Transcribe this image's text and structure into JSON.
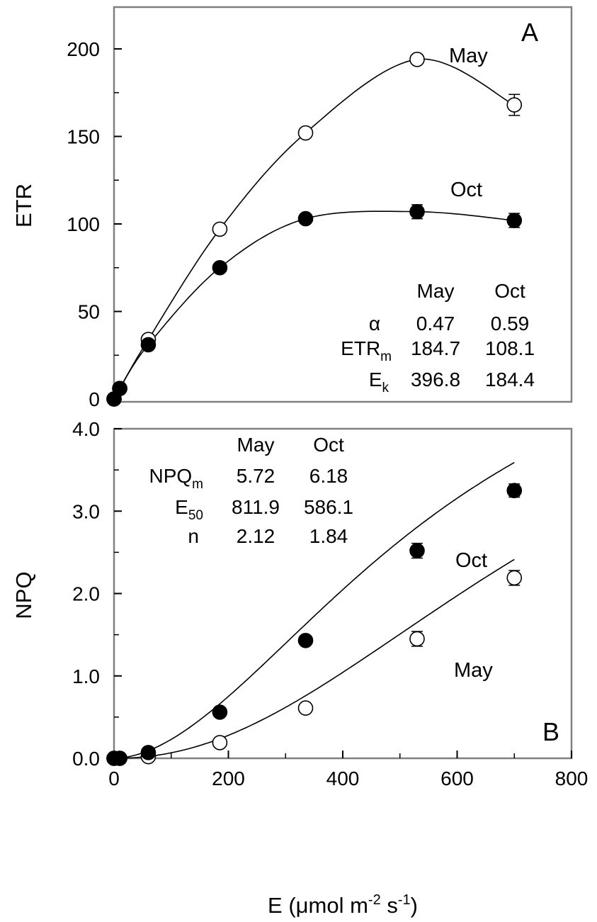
{
  "chart_data": [
    {
      "panel_label": "A",
      "type": "scatter",
      "ylabel": "ETR",
      "xlim": [
        0,
        800
      ],
      "ylim": [
        0,
        220
      ],
      "yticks": [
        0,
        50,
        100,
        150,
        200
      ],
      "ytick_labels": [
        "0",
        "50",
        "100",
        "150",
        "200"
      ],
      "grid": false,
      "series": [
        {
          "name": "May",
          "marker": "open-circle",
          "x": [
            0,
            10,
            60,
            185,
            335,
            530,
            700
          ],
          "y": [
            0,
            6,
            34,
            97,
            152,
            194,
            168
          ],
          "err": [
            0,
            0,
            0,
            0,
            0,
            0,
            6
          ],
          "fit": {
            "model": "Platt",
            "alpha": 0.47,
            "ETRm": 184.7
          }
        },
        {
          "name": "Oct",
          "marker": "filled-circle",
          "x": [
            0,
            10,
            60,
            185,
            335,
            530,
            700
          ],
          "y": [
            0,
            6,
            31,
            75,
            103,
            107,
            102
          ],
          "err": [
            0,
            0,
            0,
            0,
            0,
            4,
            4
          ],
          "fit": {
            "model": "Platt",
            "alpha": 0.59,
            "ETRm": 108.1
          }
        }
      ],
      "parameter_table": {
        "columns": [
          "May",
          "Oct"
        ],
        "rows": [
          {
            "base": "α",
            "sub": "",
            "values": [
              "0.47",
              "0.59"
            ]
          },
          {
            "base": "ETR",
            "sub": "m",
            "values": [
              "184.7",
              "108.1"
            ]
          },
          {
            "base": "E",
            "sub": "k",
            "values": [
              "396.8",
              "184.4"
            ]
          }
        ]
      }
    },
    {
      "panel_label": "B",
      "type": "scatter",
      "ylabel": "NPQ",
      "xlabel": "E (μmol m⁻² s⁻¹)",
      "xlim": [
        0,
        800
      ],
      "xticks": [
        0,
        200,
        400,
        600,
        800
      ],
      "xtick_labels": [
        "0",
        "200",
        "400",
        "600",
        "800"
      ],
      "ylim": [
        0,
        4
      ],
      "yticks": [
        0,
        1,
        2,
        3,
        4
      ],
      "ytick_labels": [
        "0.0",
        "1.0",
        "2.0",
        "3.0",
        "4.0"
      ],
      "grid": false,
      "series": [
        {
          "name": "May",
          "marker": "open-circle",
          "x": [
            0,
            10,
            60,
            185,
            335,
            530,
            700
          ],
          "y": [
            0,
            0,
            0.02,
            0.19,
            0.61,
            1.45,
            2.19
          ],
          "err": [
            0,
            0,
            0,
            0,
            0,
            0.09,
            0.09
          ],
          "fit": {
            "model": "Hill",
            "NPQm": 5.72,
            "E50": 811.9,
            "n": 2.12
          }
        },
        {
          "name": "Oct",
          "marker": "filled-circle",
          "x": [
            0,
            10,
            60,
            185,
            335,
            530,
            700
          ],
          "y": [
            0,
            0,
            0.07,
            0.56,
            1.43,
            2.52,
            3.25
          ],
          "err": [
            0,
            0,
            0,
            0,
            0,
            0.09,
            0.08
          ],
          "fit": {
            "model": "Hill",
            "NPQm": 6.18,
            "E50": 586.1,
            "n": 1.84
          }
        }
      ],
      "parameter_table": {
        "columns": [
          "May",
          "Oct"
        ],
        "rows": [
          {
            "base": "NPQ",
            "sub": "m",
            "values": [
              "5.72",
              "6.18"
            ]
          },
          {
            "base": "E",
            "sub": "50",
            "values": [
              "811.9",
              "586.1"
            ]
          },
          {
            "base": "n",
            "sub": "",
            "values": [
              "2.12",
              "1.84"
            ]
          }
        ]
      }
    }
  ]
}
